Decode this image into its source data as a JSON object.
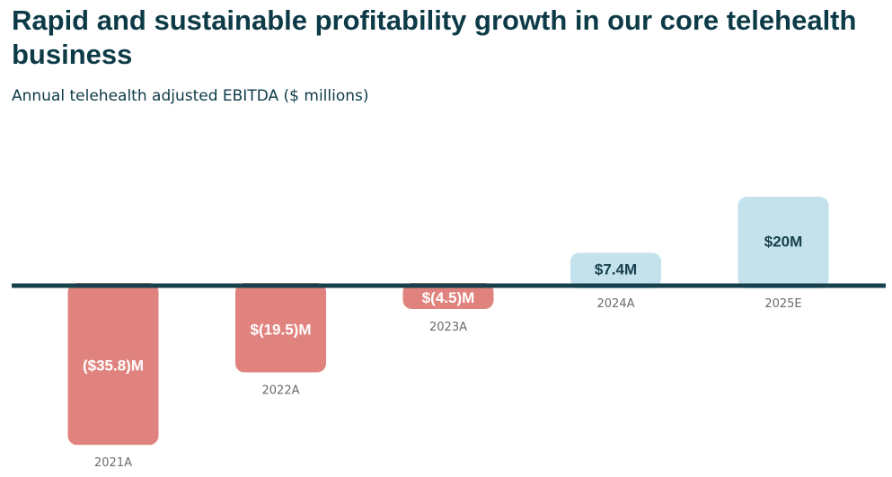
{
  "title": "Rapid and sustainable profitability growth in our core telehealth business",
  "subtitle": "Annual telehealth adjusted EBITDA ($ millions)",
  "colors": {
    "title": "#0d3a47",
    "baseline": "#17404d",
    "negative": "#e0837e",
    "positive": "#c3e2ec",
    "negative_label": "#ffffff",
    "positive_label": "#17404d",
    "category_label": "#6b6b6b"
  },
  "chart_data": {
    "type": "bar",
    "title": "Rapid and sustainable profitability growth in our core telehealth business",
    "subtitle": "Annual telehealth adjusted EBITDA ($ millions)",
    "categories": [
      "2021A",
      "2022A",
      "2023A",
      "2024A",
      "2025E"
    ],
    "values": [
      -35.8,
      -19.5,
      -4.5,
      7.4,
      20
    ],
    "data_labels": [
      "($35.8)M",
      "$(19.5)M",
      "$(4.5)M",
      "$7.4M",
      "$20M"
    ],
    "xlabel": "",
    "ylabel": "",
    "ylim": [
      -36,
      16
    ],
    "grid": false,
    "legend": "none"
  }
}
